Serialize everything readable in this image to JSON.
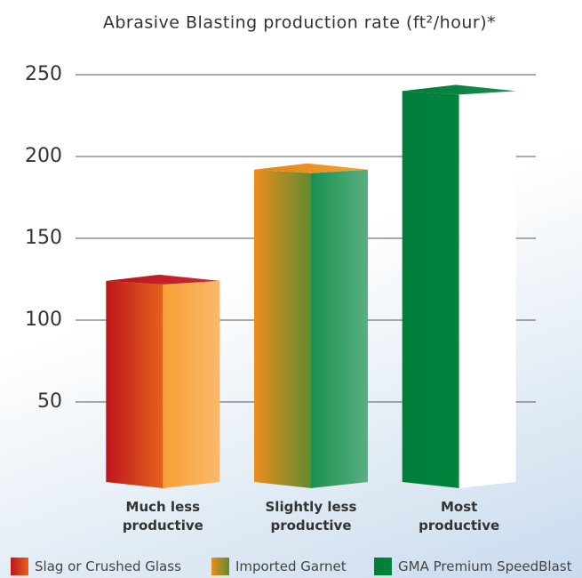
{
  "chart_data": {
    "type": "bar3d",
    "title": "Abrasive Blasting production rate (ft²/hour)*",
    "categories": [
      "Much less productive",
      "Slightly less productive",
      "Most productive"
    ],
    "values": [
      124,
      192,
      240
    ],
    "colors": [
      "#c8161d",
      "#f7941d",
      "#00843d"
    ],
    "legend": [
      "Slag or Crushed Glass",
      "Imported Garnet",
      "GMA Premium SpeedBlast"
    ],
    "ylim": [
      0,
      250
    ],
    "yticks": [
      50,
      100,
      150,
      200,
      250
    ],
    "grid": true
  }
}
